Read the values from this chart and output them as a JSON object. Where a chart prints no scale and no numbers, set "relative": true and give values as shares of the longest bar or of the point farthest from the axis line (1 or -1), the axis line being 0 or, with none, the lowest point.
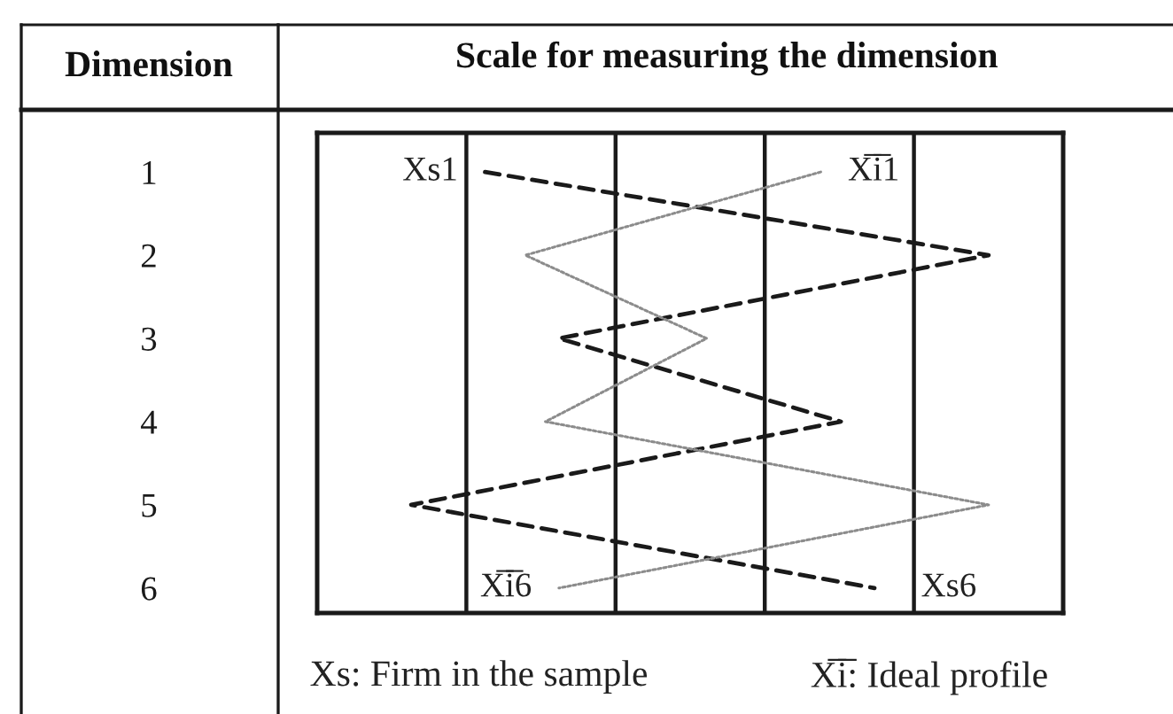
{
  "chart_data": {
    "type": "line",
    "orientation": "horizontal",
    "relative": true,
    "tick_labels": "y",
    "grid": "x",
    "xlabel": "Scale for measuring the dimension",
    "ylabel": "Dimension",
    "categories": [
      "1",
      "2",
      "3",
      "4",
      "5",
      "6"
    ],
    "series": [
      {
        "color": "#1a1a1a",
        "line_style": "dashed",
        "values": [
          0.25,
          1,
          0.36,
          0.78,
          0.14,
          0.83
        ]
      },
      {
        "color": "#8c8c8c",
        "line_style": "dotted",
        "values": [
          0.75,
          0.31,
          0.58,
          0.34,
          1,
          0.36
        ]
      }
    ],
    "annotations": [
      {
        "text": "Xs1",
        "x": 0.25,
        "y": "1"
      },
      {
        "text": "X̅i̅1",
        "x": 0.75,
        "y": "1"
      },
      {
        "text": "X̅i̅6",
        "x": 0.36,
        "y": "6"
      },
      {
        "text": "Xs6",
        "x": 0.83,
        "y": "6"
      },
      "Xs: Firm in the sample",
      "X̅i̅: Ideal profile"
    ]
  }
}
